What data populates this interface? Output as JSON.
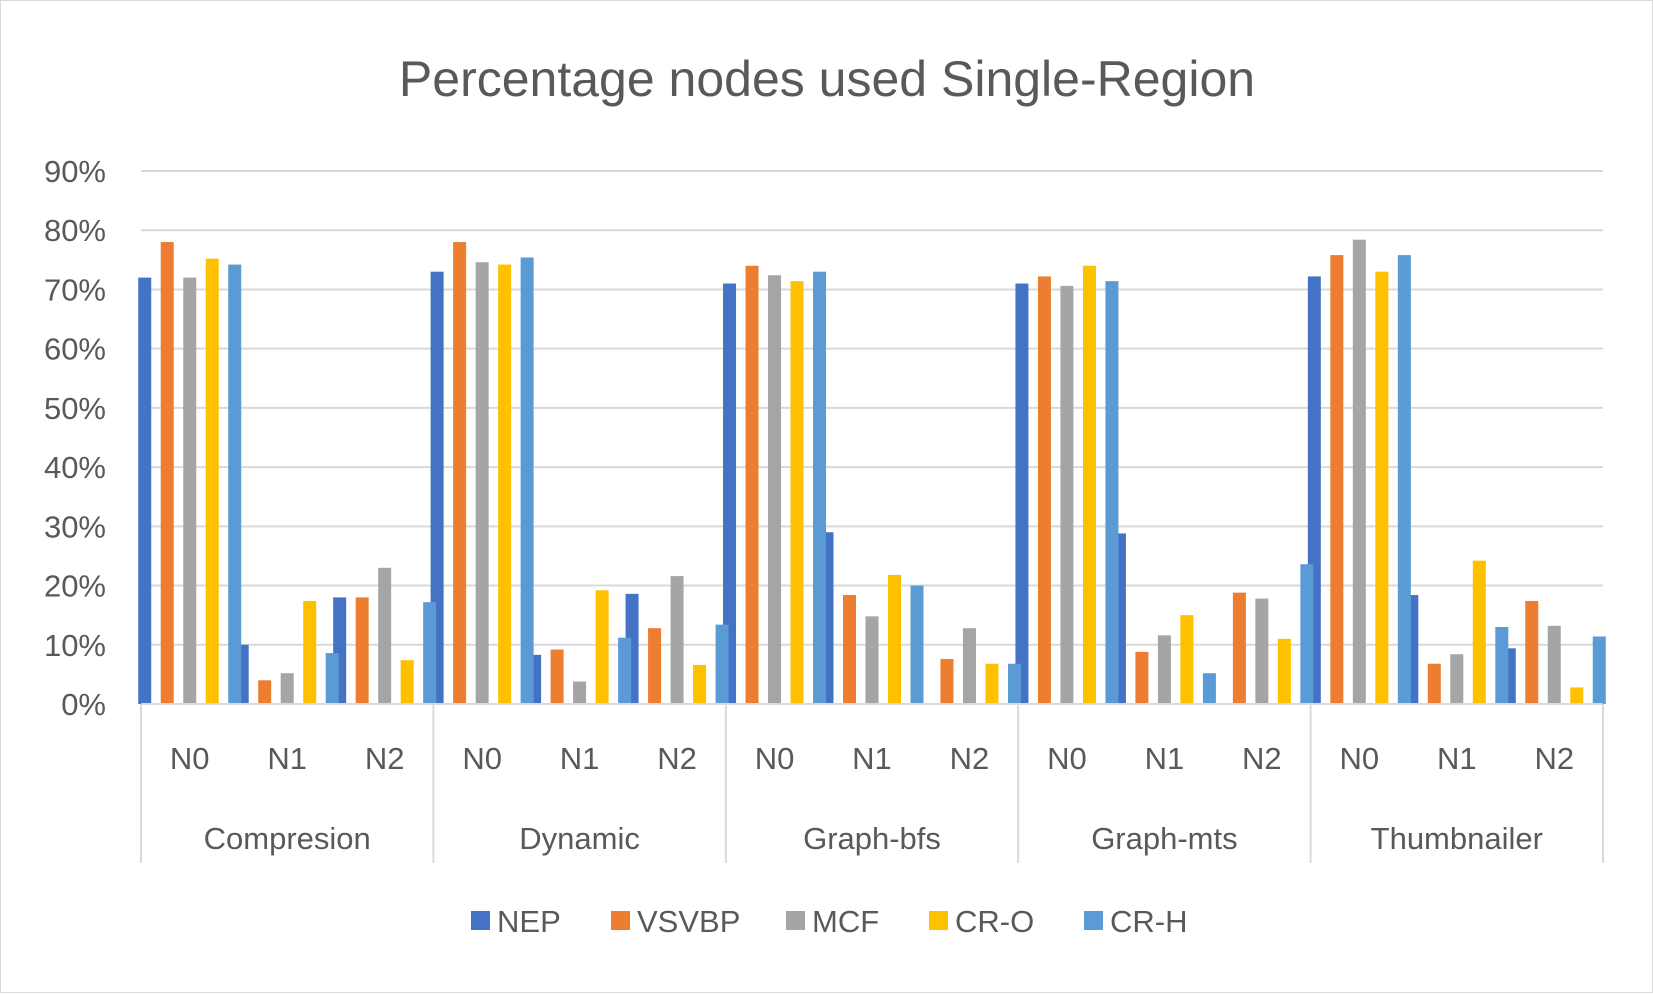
{
  "chart_data": {
    "type": "bar",
    "title": "Percentage nodes used Single-Region",
    "xlabel": "",
    "ylabel": "",
    "ylim": [
      0,
      90
    ],
    "y_ticks": [
      "0%",
      "10%",
      "20%",
      "30%",
      "40%",
      "50%",
      "60%",
      "70%",
      "80%",
      "90%"
    ],
    "y_tick_values": [
      0,
      10,
      20,
      30,
      40,
      50,
      60,
      70,
      80,
      90
    ],
    "groups": [
      "Compresion",
      "Dynamic",
      "Graph-bfs",
      "Graph-mts",
      "Thumbnailer"
    ],
    "subcategories": [
      "N0",
      "N1",
      "N2"
    ],
    "categories": [
      "Compresion N0",
      "Compresion N1",
      "Compresion N2",
      "Dynamic N0",
      "Dynamic N1",
      "Dynamic N2",
      "Graph-bfs N0",
      "Graph-bfs N1",
      "Graph-bfs N2",
      "Graph-mts N0",
      "Graph-mts N1",
      "Graph-mts N2",
      "Thumbnailer N0",
      "Thumbnailer N1",
      "Thumbnailer N2"
    ],
    "grid": true,
    "legend_position": "bottom",
    "series": [
      {
        "name": "NEP",
        "color": "#4472c4",
        "values": [
          72,
          10,
          18,
          73,
          8.3,
          18.6,
          71,
          29,
          0,
          71,
          28.8,
          0,
          72.2,
          18.4,
          9.4
        ]
      },
      {
        "name": "VSVBP",
        "color": "#ed7d31",
        "values": [
          78,
          4,
          18,
          78,
          9.2,
          12.8,
          74,
          18.4,
          7.6,
          72.2,
          8.8,
          18.8,
          75.8,
          6.8,
          17.4
        ]
      },
      {
        "name": "MCF",
        "color": "#a5a5a5",
        "values": [
          72,
          5.2,
          23,
          74.6,
          3.8,
          21.6,
          72.4,
          14.8,
          12.8,
          70.6,
          11.6,
          17.8,
          78.4,
          8.4,
          13.2
        ]
      },
      {
        "name": "CR-O",
        "color": "#ffc000",
        "values": [
          75.2,
          17.4,
          7.4,
          74.2,
          19.2,
          6.6,
          71.4,
          21.8,
          6.8,
          74,
          15,
          11,
          73,
          24.2,
          2.8
        ]
      },
      {
        "name": "CR-H",
        "color": "#5b9bd5",
        "values": [
          74.2,
          8.6,
          17.2,
          75.4,
          11.2,
          13.4,
          73,
          20,
          6.8,
          71.4,
          5.2,
          23.6,
          75.8,
          13,
          11.4
        ]
      }
    ]
  }
}
